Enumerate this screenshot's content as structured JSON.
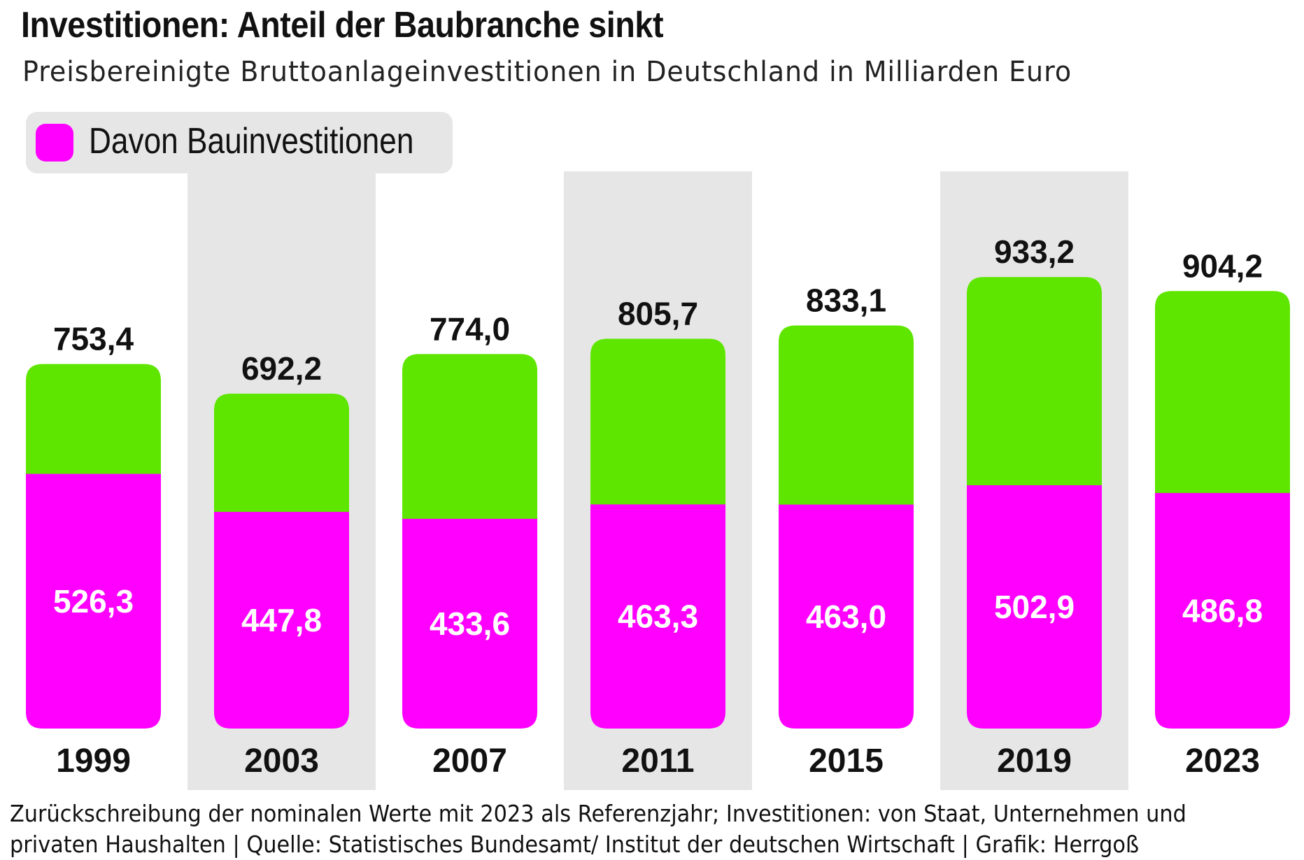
{
  "title": "Investitionen: Anteil der Baubranche sinkt",
  "subtitle": "Preisbereinigte Bruttoanlageinvestitionen in Deutschland in Milliarden Euro",
  "legend": {
    "label": "Davon Bauinvestitionen",
    "color": "#ff00ff"
  },
  "colors": {
    "total": "#5fe600",
    "construction": "#ff00ff",
    "band": "#e6e6e6"
  },
  "chart_data": {
    "type": "bar",
    "stacked": true,
    "categories": [
      "1999",
      "2003",
      "2007",
      "2011",
      "2015",
      "2019",
      "2023"
    ],
    "series": [
      {
        "name": "Davon Bauinvestitionen",
        "values": [
          526.3,
          447.8,
          433.6,
          463.3,
          463.0,
          502.9,
          486.8
        ]
      }
    ],
    "totals": [
      753.4,
      692.2,
      774.0,
      805.7,
      833.1,
      933.2,
      904.2
    ],
    "total_labels": [
      "753,4",
      "692,2",
      "774,0",
      "805,7",
      "833,1",
      "933,2",
      "904,2"
    ],
    "construction_labels": [
      "526,3",
      "447,8",
      "433,6",
      "463,3",
      "463,0",
      "502,9",
      "486,8"
    ],
    "shaded_columns": [
      "2003",
      "2011",
      "2019"
    ],
    "ylim": [
      0,
      1000
    ]
  },
  "footer": {
    "line1": "Zurückschreibung der nominalen Werte mit 2023 als Referenzjahr; Investitionen: von Staat, Unternehmen und",
    "line2": "privaten Haushalten | Quelle: Statistisches Bundesamt/ Institut der deutschen Wirtschaft | Grafik: Herrgoß"
  }
}
